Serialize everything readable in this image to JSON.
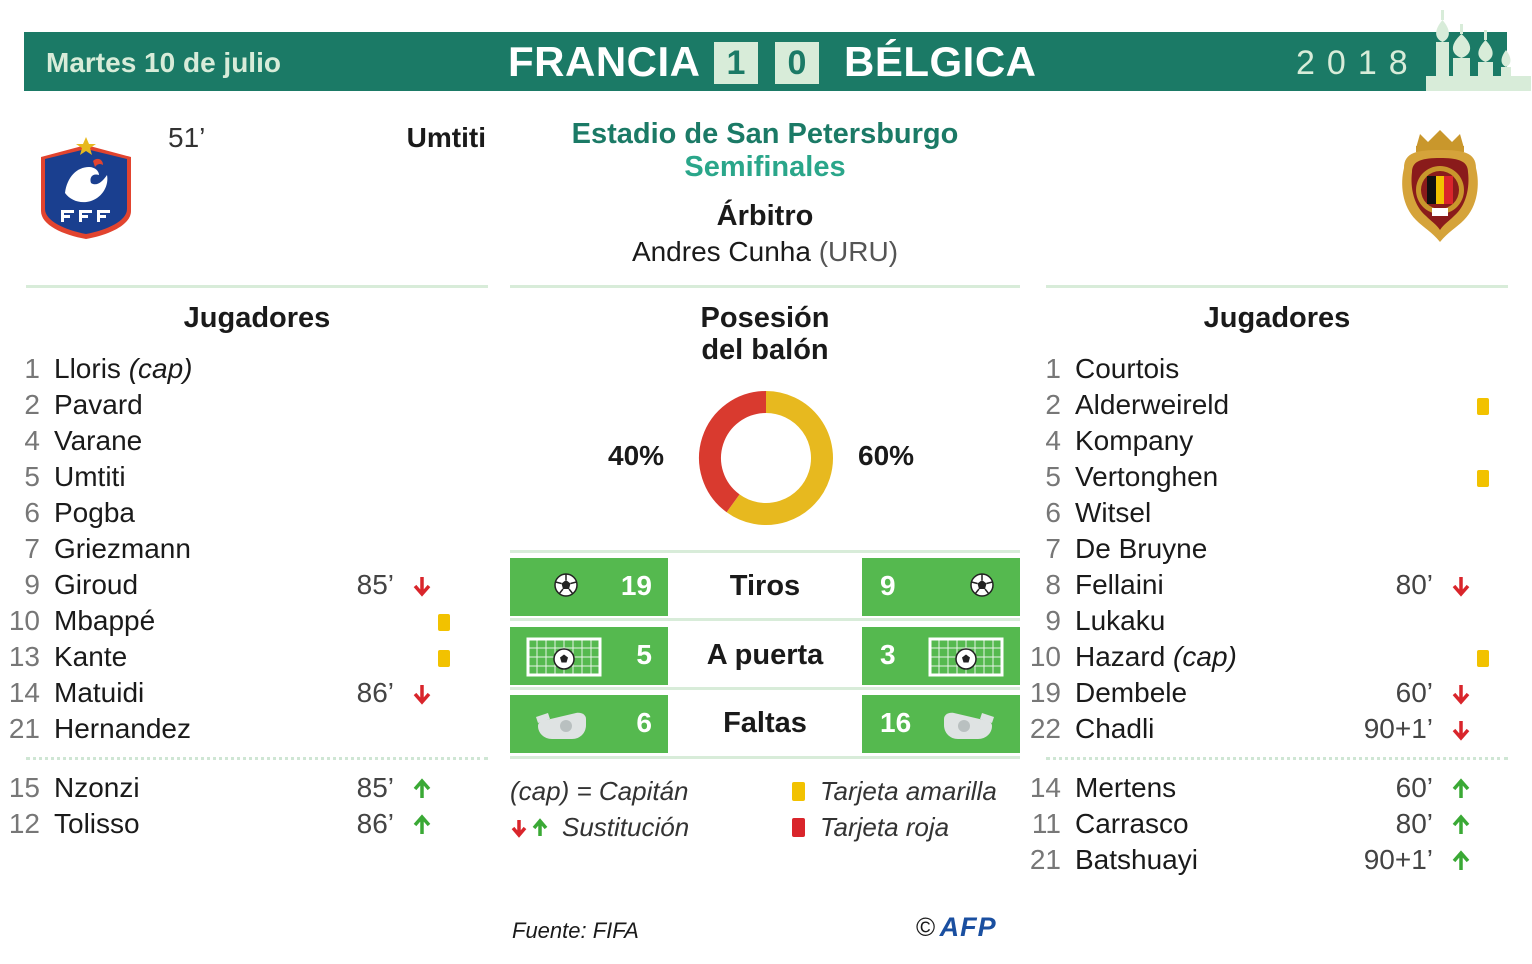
{
  "header": {
    "date": "Martes 10 de julio",
    "home_team": "FRANCIA",
    "home_score": "1",
    "away_score": "0",
    "away_team": "BÉLGICA",
    "year": "2018"
  },
  "goal": {
    "minute": "51’",
    "scorer": "Umtiti"
  },
  "venue": {
    "stadium": "Estadio de San Petersburgo",
    "stage": "Semifinales",
    "referee_title": "Árbitro",
    "referee_name": "Andres Cunha",
    "referee_country": "(URU)"
  },
  "home": {
    "title": "Jugadores",
    "starters": [
      {
        "num": "1",
        "name": "Lloris",
        "tag": "(cap)",
        "min": "",
        "sub": "",
        "card": ""
      },
      {
        "num": "2",
        "name": "Pavard",
        "tag": "",
        "min": "",
        "sub": "",
        "card": ""
      },
      {
        "num": "4",
        "name": "Varane",
        "tag": "",
        "min": "",
        "sub": "",
        "card": ""
      },
      {
        "num": "5",
        "name": "Umtiti",
        "tag": "",
        "min": "",
        "sub": "",
        "card": ""
      },
      {
        "num": "6",
        "name": "Pogba",
        "tag": "",
        "min": "",
        "sub": "",
        "card": ""
      },
      {
        "num": "7",
        "name": "Griezmann",
        "tag": "",
        "min": "",
        "sub": "",
        "card": ""
      },
      {
        "num": "9",
        "name": "Giroud",
        "tag": "",
        "min": "85’",
        "sub": "out",
        "card": ""
      },
      {
        "num": "10",
        "name": "Mbappé",
        "tag": "",
        "min": "",
        "sub": "",
        "card": "yellow"
      },
      {
        "num": "13",
        "name": "Kante",
        "tag": "",
        "min": "",
        "sub": "",
        "card": "yellow"
      },
      {
        "num": "14",
        "name": "Matuidi",
        "tag": "",
        "min": "86’",
        "sub": "out",
        "card": ""
      },
      {
        "num": "21",
        "name": "Hernandez",
        "tag": "",
        "min": "",
        "sub": "",
        "card": ""
      }
    ],
    "subs": [
      {
        "num": "15",
        "name": "Nzonzi",
        "tag": "",
        "min": "85’",
        "sub": "in",
        "card": ""
      },
      {
        "num": "12",
        "name": "Tolisso",
        "tag": "",
        "min": "86’",
        "sub": "in",
        "card": ""
      }
    ]
  },
  "away": {
    "title": "Jugadores",
    "starters": [
      {
        "num": "1",
        "name": "Courtois",
        "tag": "",
        "min": "",
        "sub": "",
        "card": ""
      },
      {
        "num": "2",
        "name": "Alderweireld",
        "tag": "",
        "min": "",
        "sub": "",
        "card": "yellow"
      },
      {
        "num": "4",
        "name": "Kompany",
        "tag": "",
        "min": "",
        "sub": "",
        "card": ""
      },
      {
        "num": "5",
        "name": "Vertonghen",
        "tag": "",
        "min": "",
        "sub": "",
        "card": "yellow"
      },
      {
        "num": "6",
        "name": "Witsel",
        "tag": "",
        "min": "",
        "sub": "",
        "card": ""
      },
      {
        "num": "7",
        "name": "De Bruyne",
        "tag": "",
        "min": "",
        "sub": "",
        "card": ""
      },
      {
        "num": "8",
        "name": "Fellaini",
        "tag": "",
        "min": "80’",
        "sub": "out",
        "card": ""
      },
      {
        "num": "9",
        "name": "Lukaku",
        "tag": "",
        "min": "",
        "sub": "",
        "card": ""
      },
      {
        "num": "10",
        "name": "Hazard",
        "tag": "(cap)",
        "min": "",
        "sub": "",
        "card": "yellow"
      },
      {
        "num": "19",
        "name": "Dembele",
        "tag": "",
        "min": "60’",
        "sub": "out",
        "card": ""
      },
      {
        "num": "22",
        "name": "Chadli",
        "tag": "",
        "min": "90+1’",
        "sub": "out",
        "card": ""
      }
    ],
    "subs": [
      {
        "num": "14",
        "name": "Mertens",
        "tag": "",
        "min": "60’",
        "sub": "in",
        "card": ""
      },
      {
        "num": "11",
        "name": "Carrasco",
        "tag": "",
        "min": "80’",
        "sub": "in",
        "card": ""
      },
      {
        "num": "21",
        "name": "Batshuayi",
        "tag": "",
        "min": "90+1’",
        "sub": "in",
        "card": ""
      }
    ]
  },
  "possession": {
    "title_line1": "Posesión",
    "title_line2": "del balón",
    "home_label": "40%",
    "away_label": "60%",
    "home_value": 40,
    "away_value": 60,
    "home_color": "#d93a2f",
    "away_color": "#e7b91f"
  },
  "stats": {
    "shots": {
      "label": "Tiros",
      "home": "19",
      "away": "9",
      "icon": "ball-icon"
    },
    "on_target": {
      "label": "A puerta",
      "home": "5",
      "away": "3",
      "icon": "goal-icon"
    },
    "fouls": {
      "label": "Faltas",
      "home": "6",
      "away": "16",
      "icon": "whistle-icon"
    }
  },
  "legend": {
    "captain": "(cap) = Capitán",
    "substitution": "Sustitución",
    "yellow_card": "Tarjeta amarilla",
    "red_card": "Tarjeta roja"
  },
  "colors": {
    "header_bg": "#1b7a66",
    "stat_green": "#55b94f",
    "yellow_card": "#f2c200",
    "red_card": "#d9252b",
    "arrow_in": "#3aa935",
    "arrow_out": "#d9252b"
  },
  "footer": {
    "source": "Fuente: FIFA",
    "copyright": "©",
    "agency": "AFP"
  }
}
